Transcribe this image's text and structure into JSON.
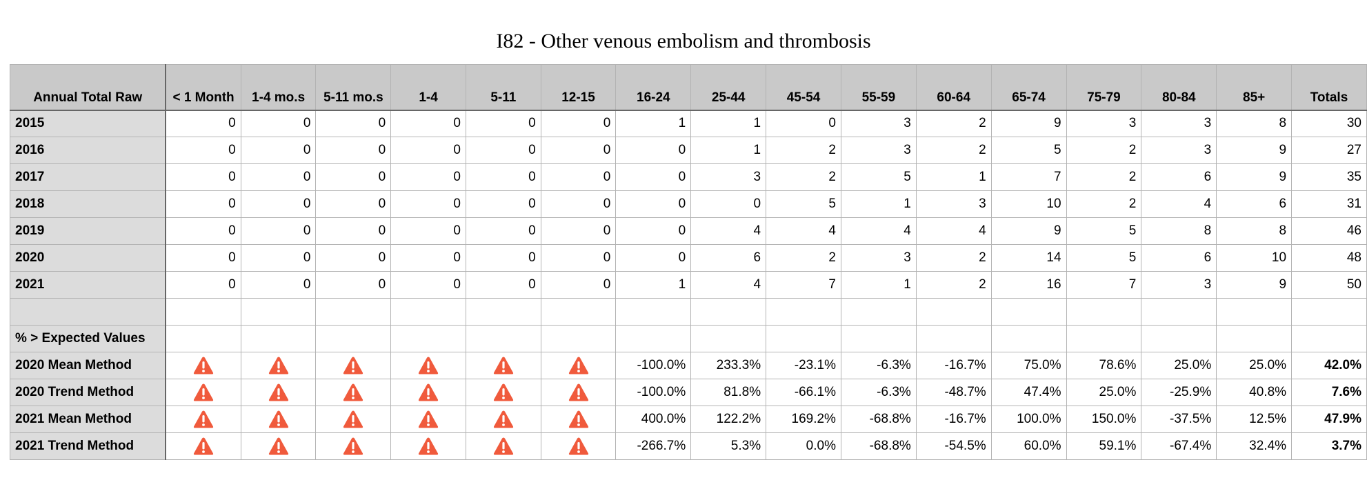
{
  "title": "I82 - Other venous embolism and thrombosis",
  "table": {
    "corner_label": "Annual Total Raw",
    "columns": [
      "< 1 Month",
      "1-4 mo.s",
      "5-11 mo.s",
      "1-4",
      "5-11",
      "12-15",
      "16-24",
      "25-44",
      "45-54",
      "55-59",
      "60-64",
      "65-74",
      "75-79",
      "80-84",
      "85+",
      "Totals"
    ],
    "raw_rows": [
      {
        "label": "2015",
        "values": [
          "0",
          "0",
          "0",
          "0",
          "0",
          "0",
          "1",
          "1",
          "0",
          "3",
          "2",
          "9",
          "3",
          "3",
          "8",
          "30"
        ]
      },
      {
        "label": "2016",
        "values": [
          "0",
          "0",
          "0",
          "0",
          "0",
          "0",
          "0",
          "1",
          "2",
          "3",
          "2",
          "5",
          "2",
          "3",
          "9",
          "27"
        ]
      },
      {
        "label": "2017",
        "values": [
          "0",
          "0",
          "0",
          "0",
          "0",
          "0",
          "0",
          "3",
          "2",
          "5",
          "1",
          "7",
          "2",
          "6",
          "9",
          "35"
        ]
      },
      {
        "label": "2018",
        "values": [
          "0",
          "0",
          "0",
          "0",
          "0",
          "0",
          "0",
          "0",
          "5",
          "1",
          "3",
          "10",
          "2",
          "4",
          "6",
          "31"
        ]
      },
      {
        "label": "2019",
        "values": [
          "0",
          "0",
          "0",
          "0",
          "0",
          "0",
          "0",
          "4",
          "4",
          "4",
          "4",
          "9",
          "5",
          "8",
          "8",
          "46"
        ]
      },
      {
        "label": "2020",
        "values": [
          "0",
          "0",
          "0",
          "0",
          "0",
          "0",
          "0",
          "6",
          "2",
          "3",
          "2",
          "14",
          "5",
          "6",
          "10",
          "48"
        ]
      },
      {
        "label": "2021",
        "values": [
          "0",
          "0",
          "0",
          "0",
          "0",
          "0",
          "1",
          "4",
          "7",
          "1",
          "2",
          "16",
          "7",
          "3",
          "9",
          "50"
        ]
      }
    ],
    "section_label": "% > Expected Values",
    "warning_icon": "warning-triangle-icon",
    "warning_color": "#f05a3c",
    "pct_rows": [
      {
        "label": "2020 Mean Method",
        "values": [
          "-100.0%",
          "233.3%",
          "-23.1%",
          "-6.3%",
          "-16.7%",
          "75.0%",
          "78.6%",
          "25.0%",
          "25.0%"
        ],
        "total": "42.0%"
      },
      {
        "label": "2020 Trend Method",
        "values": [
          "-100.0%",
          "81.8%",
          "-66.1%",
          "-6.3%",
          "-48.7%",
          "47.4%",
          "25.0%",
          "-25.9%",
          "40.8%"
        ],
        "total": "7.6%"
      },
      {
        "label": "2021 Mean Method",
        "values": [
          "400.0%",
          "122.2%",
          "169.2%",
          "-68.8%",
          "-16.7%",
          "100.0%",
          "150.0%",
          "-37.5%",
          "12.5%"
        ],
        "total": "47.9%"
      },
      {
        "label": "2021 Trend Method",
        "values": [
          "-266.7%",
          "5.3%",
          "0.0%",
          "-68.8%",
          "-54.5%",
          "60.0%",
          "59.1%",
          "-67.4%",
          "32.4%"
        ],
        "total": "3.7%"
      }
    ]
  }
}
